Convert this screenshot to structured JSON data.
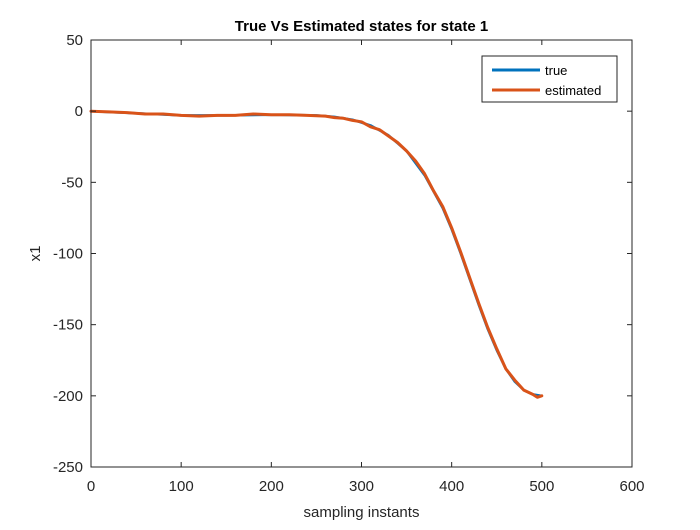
{
  "chart_data": {
    "type": "line",
    "title": "True Vs Estimated states for state 1",
    "xlabel": "sampling instants",
    "ylabel": "x1",
    "xlim": [
      0,
      600
    ],
    "ylim": [
      -250,
      50
    ],
    "xticks": [
      0,
      100,
      200,
      300,
      400,
      500,
      600
    ],
    "yticks": [
      -250,
      -200,
      -150,
      -100,
      -50,
      0,
      50
    ],
    "xtick_labels": [
      "0",
      "100",
      "200",
      "300",
      "400",
      "500",
      "600"
    ],
    "ytick_labels": [
      "-250",
      "-200",
      "-150",
      "-100",
      "-50",
      "0",
      "50"
    ],
    "grid": false,
    "legend_position": "top-right",
    "series": [
      {
        "name": "true",
        "color": "#0072BD",
        "x": [
          0,
          50,
          100,
          150,
          200,
          250,
          270,
          290,
          310,
          330,
          350,
          370,
          390,
          400,
          410,
          420,
          430,
          440,
          450,
          460,
          470,
          480,
          490,
          500
        ],
        "y": [
          0,
          -1.5,
          -3,
          -3,
          -2.5,
          -3,
          -4,
          -6,
          -10,
          -17,
          -28,
          -45,
          -68,
          -83,
          -100,
          -118,
          -136,
          -153,
          -168,
          -181,
          -190,
          -196,
          -199,
          -200
        ]
      },
      {
        "name": "estimated",
        "color": "#D95319",
        "x": [
          0,
          20,
          40,
          60,
          80,
          100,
          120,
          140,
          160,
          180,
          200,
          220,
          240,
          260,
          270,
          280,
          290,
          300,
          310,
          320,
          330,
          340,
          350,
          360,
          370,
          380,
          390,
          400,
          410,
          420,
          430,
          440,
          450,
          460,
          470,
          480,
          490,
          495,
          500
        ],
        "y": [
          0,
          -0.5,
          -1,
          -2,
          -2,
          -3,
          -3.5,
          -3,
          -3,
          -2,
          -2.5,
          -2.5,
          -3,
          -3.5,
          -4.5,
          -5,
          -6.5,
          -7.5,
          -11,
          -13,
          -17.5,
          -22,
          -28,
          -35,
          -44,
          -56,
          -67,
          -82,
          -99,
          -117,
          -135,
          -152,
          -167,
          -181,
          -189,
          -196,
          -199,
          -201,
          -200
        ]
      }
    ]
  }
}
